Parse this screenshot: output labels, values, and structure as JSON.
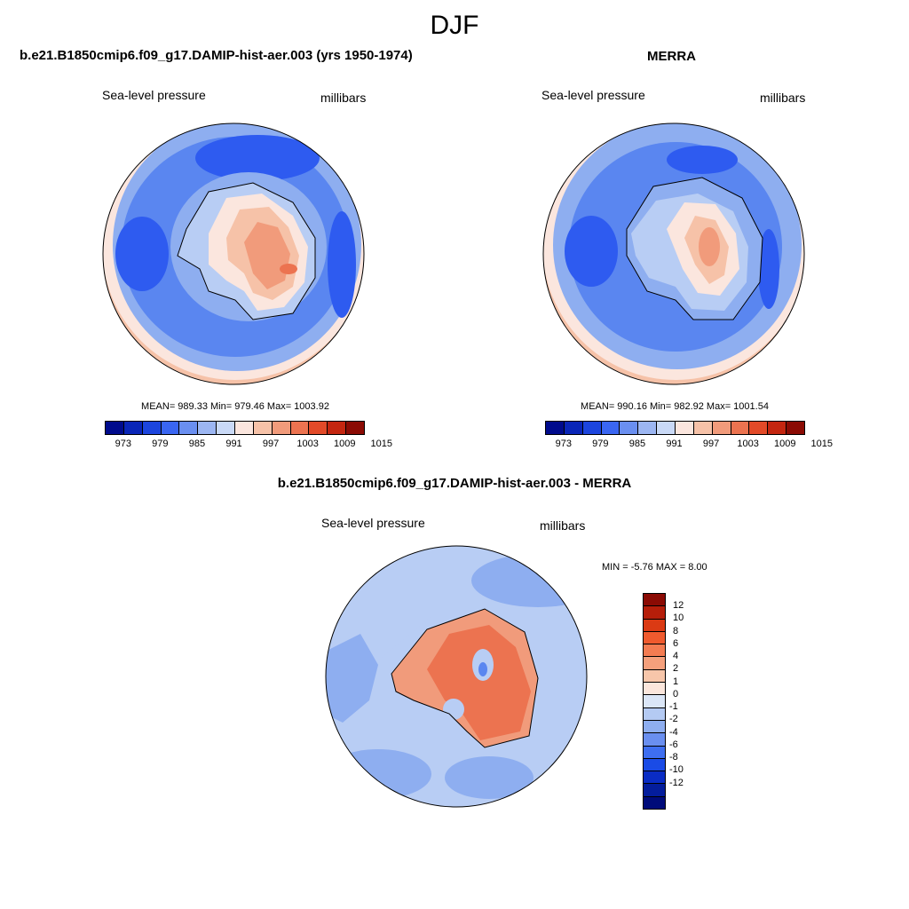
{
  "figure": {
    "title": "DJF"
  },
  "panel_model": {
    "title": "b.e21.B1850cmip6.f09_g17.DAMIP-hist-aer.003 (yrs 1950-1974)",
    "variable": "Sea-level pressure",
    "units": "millibars",
    "stats": "MEAN= 989.33   Min= 979.46   Max= 1003.92"
  },
  "panel_obs": {
    "title": "MERRA",
    "variable": "Sea-level pressure",
    "units": "millibars",
    "stats": "MEAN= 990.16   Min= 982.92   Max= 1001.54"
  },
  "panel_diff": {
    "title": "b.e21.B1850cmip6.f09_g17.DAMIP-hist-aer.003 - MERRA",
    "variable": "Sea-level pressure",
    "units": "millibars",
    "stats": "MIN =   -5.76 MAX =    8.00"
  },
  "colorbar_abs": {
    "colors": [
      "#000b8c",
      "#0a26b8",
      "#1c45de",
      "#3a66f2",
      "#6a8ff0",
      "#9cb6f2",
      "#c9d9f6",
      "#fbe6de",
      "#f6c2a8",
      "#f19b7b",
      "#ec7350",
      "#e24a28",
      "#c42610",
      "#8b0b04"
    ],
    "labels": [
      "973",
      "979",
      "985",
      "991",
      "997",
      "1003",
      "1009",
      "1015"
    ]
  },
  "colorbar_diff": {
    "colors_top_to_bottom": [
      "#8b0b04",
      "#b61e0a",
      "#db3a14",
      "#f05a2e",
      "#f47c52",
      "#f5a07c",
      "#f7c6aa",
      "#fbe6dc",
      "#dbe6f7",
      "#b4caf3",
      "#8eaef0",
      "#6a8ff0",
      "#3e6ef0",
      "#1a4be6",
      "#0a2cc4",
      "#041d9c",
      "#000b7a"
    ],
    "labels": [
      "12",
      "10",
      "8",
      "6",
      "4",
      "2",
      "1",
      "0",
      "-1",
      "-2",
      "-4",
      "-6",
      "-8",
      "-10",
      "-12"
    ]
  },
  "map_colors": {
    "ocean_deep": "#2e5bf0",
    "ocean_mid": "#5a86f0",
    "ocean_light": "#8eaef0",
    "ocean_pale": "#b8cdf4",
    "edge_pale": "#fbe6de",
    "edge_warm": "#f6c2a8",
    "land_low": "#f6c2a8",
    "land_mid": "#f19b7b",
    "land_high": "#ec7350",
    "diff_bg": "#b8cdf4",
    "diff_mid": "#8eaef0",
    "diff_land": "#f19b7b",
    "diff_land_high": "#ec7350"
  }
}
